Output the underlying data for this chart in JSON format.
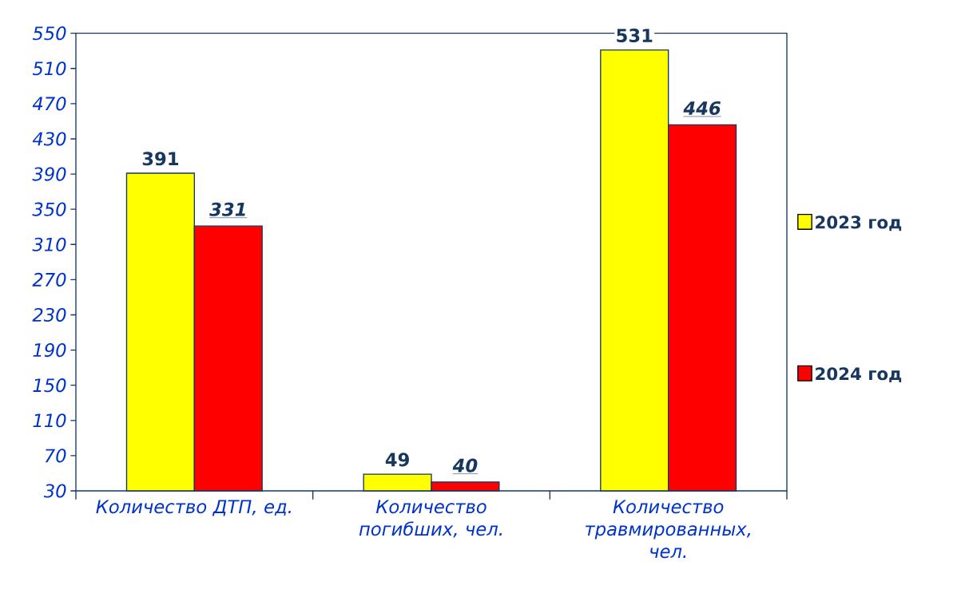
{
  "chart_data": {
    "type": "bar",
    "categories": [
      "Количество ДТП, ед.",
      "Количество погибших, чел.",
      "Количество травмированных, чел."
    ],
    "series": [
      {
        "name": "2023 год",
        "color": "#ffff00",
        "values": [
          391,
          49,
          531
        ]
      },
      {
        "name": "2024 год",
        "color": "#ff0000",
        "values": [
          331,
          40,
          446
        ]
      }
    ],
    "ylim": [
      30,
      550
    ],
    "yticks": [
      30,
      70,
      110,
      150,
      190,
      230,
      270,
      310,
      350,
      390,
      430,
      470,
      510,
      550
    ],
    "data_labels": true,
    "legend": "right"
  }
}
